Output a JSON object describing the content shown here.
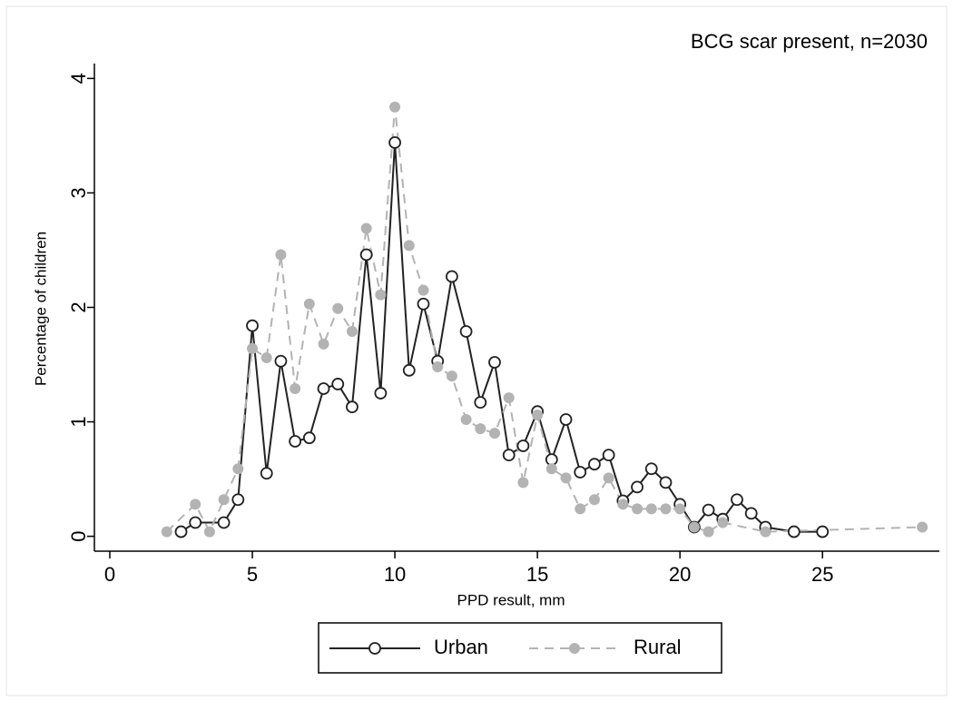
{
  "chart_data": {
    "type": "line",
    "title": "BCG scar present, n=2030",
    "xlabel": "PPD result, mm",
    "ylabel": "Percentage of children",
    "xlim": [
      -0.54,
      29.1
    ],
    "ylim": [
      -0.13,
      4.13
    ],
    "xticks": [
      0,
      5,
      10,
      15,
      20,
      25
    ],
    "yticks": [
      0,
      1,
      2,
      3,
      4
    ],
    "grid": false,
    "legend": "bottom",
    "series": [
      {
        "name": "Urban",
        "color": "#222222",
        "marker": "hollow",
        "dash": false,
        "x": [
          2.5,
          3,
          4,
          4.5,
          5,
          5.5,
          6,
          6.5,
          7,
          7.5,
          8,
          8.5,
          9,
          9.5,
          10,
          10.5,
          11,
          11.5,
          12,
          12.5,
          13,
          13.5,
          14,
          14.5,
          15,
          15.5,
          16,
          16.5,
          17,
          17.5,
          18,
          18.5,
          19,
          19.5,
          20,
          20.5,
          21,
          21.5,
          22,
          22.5,
          23,
          24,
          25
        ],
        "values": [
          0.04,
          0.12,
          0.12,
          0.32,
          1.84,
          0.55,
          1.53,
          0.83,
          0.86,
          1.29,
          1.33,
          1.13,
          2.46,
          1.25,
          3.44,
          1.45,
          2.03,
          1.53,
          2.27,
          1.79,
          1.17,
          1.52,
          0.71,
          0.79,
          1.09,
          0.67,
          1.02,
          0.56,
          0.63,
          0.71,
          0.31,
          0.43,
          0.59,
          0.47,
          0.28,
          0.08,
          0.23,
          0.15,
          0.32,
          0.2,
          0.08,
          0.04,
          0.04
        ]
      },
      {
        "name": "Rural",
        "color": "#b3b3b3",
        "marker": "filled",
        "dash": true,
        "x": [
          2,
          3,
          3.5,
          4,
          4.5,
          5,
          5.5,
          6,
          6.5,
          7,
          7.5,
          8,
          8.5,
          9,
          9.5,
          10,
          10.5,
          11,
          11.5,
          12,
          12.5,
          13,
          13.5,
          14,
          14.5,
          15,
          15.5,
          16,
          16.5,
          17,
          17.5,
          18,
          18.5,
          19,
          19.5,
          20,
          20.5,
          21,
          21.5,
          23,
          28.5
        ],
        "values": [
          0.04,
          0.28,
          0.04,
          0.32,
          0.59,
          1.64,
          1.56,
          2.46,
          1.29,
          2.03,
          1.68,
          1.99,
          1.79,
          2.69,
          2.11,
          3.75,
          2.54,
          2.15,
          1.48,
          1.4,
          1.02,
          0.94,
          0.9,
          1.21,
          0.47,
          1.06,
          0.59,
          0.51,
          0.24,
          0.32,
          0.51,
          0.28,
          0.24,
          0.24,
          0.24,
          0.24,
          0.08,
          0.04,
          0.12,
          0.04,
          0.08
        ]
      }
    ]
  }
}
